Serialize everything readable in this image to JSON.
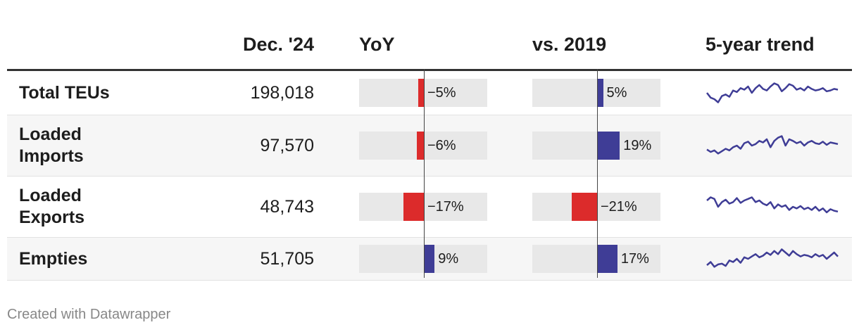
{
  "chart_data": {
    "type": "table",
    "columns": [
      "",
      "Dec. '24",
      "YoY",
      "vs. 2019",
      "5-year trend"
    ],
    "bar_domain": [
      -30,
      30
    ],
    "colors": {
      "negative": "#dc2b2b",
      "positive": "#3f3d96",
      "bar_background": "#e8e8e8",
      "sparkline": "#3f3d96"
    },
    "rows": [
      {
        "label": "Total TEUs",
        "value": "198,018",
        "yoy": -5,
        "yoy_label": "−5%",
        "vs2019": 5,
        "vs2019_label": "5%",
        "trend": [
          52,
          46,
          44,
          40,
          48,
          50,
          47,
          55,
          53,
          58,
          56,
          60,
          52,
          58,
          62,
          57,
          55,
          60,
          64,
          62,
          54,
          58,
          63,
          61,
          56,
          58,
          55,
          60,
          57,
          55,
          56,
          58,
          54,
          55,
          57,
          56
        ]
      },
      {
        "label": "Loaded Imports",
        "value": "97,570",
        "yoy": -6,
        "yoy_label": "−6%",
        "vs2019": 19,
        "vs2019_label": "19%",
        "trend": [
          47,
          44,
          46,
          42,
          45,
          48,
          46,
          50,
          52,
          48,
          55,
          57,
          52,
          54,
          58,
          56,
          60,
          50,
          58,
          62,
          64,
          52,
          60,
          58,
          55,
          57,
          52,
          56,
          58,
          55,
          54,
          57,
          53,
          56,
          55,
          54
        ]
      },
      {
        "label": "Loaded Exports",
        "value": "48,743",
        "yoy": -17,
        "yoy_label": "−17%",
        "vs2019": -21,
        "vs2019_label": "−21%",
        "trend": [
          60,
          64,
          62,
          52,
          58,
          61,
          56,
          58,
          63,
          57,
          60,
          62,
          64,
          58,
          60,
          56,
          54,
          58,
          50,
          55,
          52,
          54,
          48,
          52,
          50,
          53,
          49,
          51,
          48,
          52,
          47,
          50,
          45,
          49,
          47,
          46
        ]
      },
      {
        "label": "Empties",
        "value": "51,705",
        "yoy": 9,
        "yoy_label": "9%",
        "vs2019": 17,
        "vs2019_label": "17%",
        "trend": [
          44,
          48,
          42,
          45,
          46,
          43,
          50,
          48,
          52,
          47,
          54,
          52,
          55,
          58,
          54,
          56,
          60,
          57,
          62,
          58,
          64,
          60,
          56,
          62,
          58,
          55,
          57,
          56,
          54,
          58,
          55,
          57,
          52,
          56,
          60,
          55
        ]
      }
    ]
  },
  "footer": {
    "credit": "Created with Datawrapper"
  }
}
